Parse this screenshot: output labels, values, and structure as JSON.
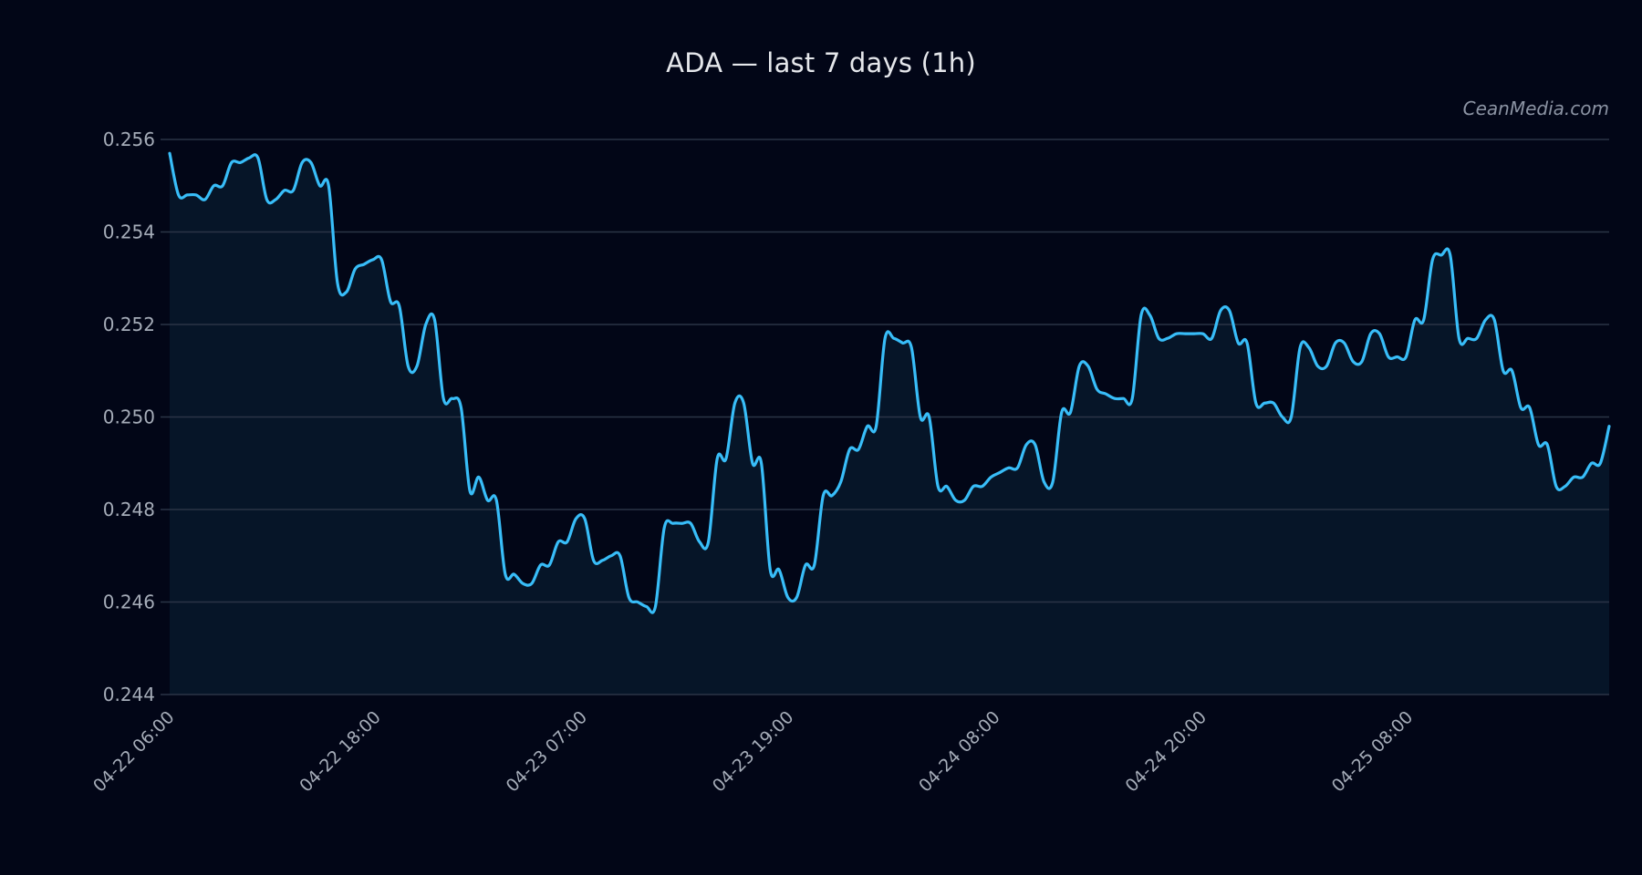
{
  "title": "ADA — last 7 days (1h)",
  "watermark": "CeanMedia.com",
  "colors": {
    "background": "#020617",
    "plot_fill": "#061528",
    "line": "#38bdf8",
    "grid": "#2a3446",
    "tick_text": "#a5acb8",
    "title_text": "#e5e7eb"
  },
  "chart_data": {
    "type": "area",
    "title": "ADA — last 7 days (1h)",
    "xlabel": "",
    "ylabel": "",
    "ylim": [
      0.244,
      0.256
    ],
    "yticks": [
      "0.256",
      "0.254",
      "0.252",
      "0.250",
      "0.248",
      "0.246",
      "0.244"
    ],
    "xticks": [
      "04-22 06:00",
      "04-22 18:00",
      "04-23 07:00",
      "04-23 19:00",
      "04-24 08:00",
      "04-24 20:00",
      "04-25 08:00"
    ],
    "grid": true,
    "legend": null,
    "series": [
      {
        "name": "ADA",
        "values": [
          0.2557,
          0.2548,
          0.2548,
          0.2548,
          0.2547,
          0.255,
          0.255,
          0.2555,
          0.2555,
          0.2556,
          0.2556,
          0.2547,
          0.2547,
          0.2549,
          0.2549,
          0.2555,
          0.2555,
          0.255,
          0.255,
          0.2529,
          0.2527,
          0.2532,
          0.2533,
          0.2534,
          0.2534,
          0.2525,
          0.2524,
          0.2511,
          0.2511,
          0.252,
          0.2521,
          0.2504,
          0.2504,
          0.2502,
          0.2484,
          0.2487,
          0.2482,
          0.2482,
          0.2466,
          0.2466,
          0.2464,
          0.2464,
          0.2468,
          0.2468,
          0.2473,
          0.2473,
          0.2478,
          0.2478,
          0.2469,
          0.2469,
          0.247,
          0.247,
          0.2461,
          0.246,
          0.2459,
          0.2459,
          0.2476,
          0.2477,
          0.2477,
          0.2477,
          0.2473,
          0.2473,
          0.2491,
          0.2491,
          0.2503,
          0.2503,
          0.249,
          0.249,
          0.2467,
          0.2467,
          0.2461,
          0.2461,
          0.2468,
          0.2468,
          0.2483,
          0.2483,
          0.2486,
          0.2493,
          0.2493,
          0.2498,
          0.2498,
          0.2517,
          0.2517,
          0.2516,
          0.2515,
          0.25,
          0.25,
          0.2485,
          0.2485,
          0.2482,
          0.2482,
          0.2485,
          0.2485,
          0.2487,
          0.2488,
          0.2489,
          0.2489,
          0.2494,
          0.2494,
          0.2486,
          0.2486,
          0.2501,
          0.2501,
          0.2511,
          0.2511,
          0.2506,
          0.2505,
          0.2504,
          0.2504,
          0.2504,
          0.2522,
          0.2522,
          0.2517,
          0.2517,
          0.2518,
          0.2518,
          0.2518,
          0.2518,
          0.2517,
          0.2523,
          0.2523,
          0.2516,
          0.2516,
          0.2503,
          0.2503,
          0.2503,
          0.25,
          0.25,
          0.2515,
          0.2515,
          0.2511,
          0.2511,
          0.2516,
          0.2516,
          0.2512,
          0.2512,
          0.2518,
          0.2518,
          0.2513,
          0.2513,
          0.2513,
          0.2521,
          0.2521,
          0.2534,
          0.2535,
          0.2535,
          0.2517,
          0.2517,
          0.2517,
          0.2521,
          0.2521,
          0.251,
          0.251,
          0.2502,
          0.2502,
          0.2494,
          0.2494,
          0.2485,
          0.2485,
          0.2487,
          0.2487,
          0.249,
          0.249,
          0.2498
        ]
      }
    ]
  }
}
